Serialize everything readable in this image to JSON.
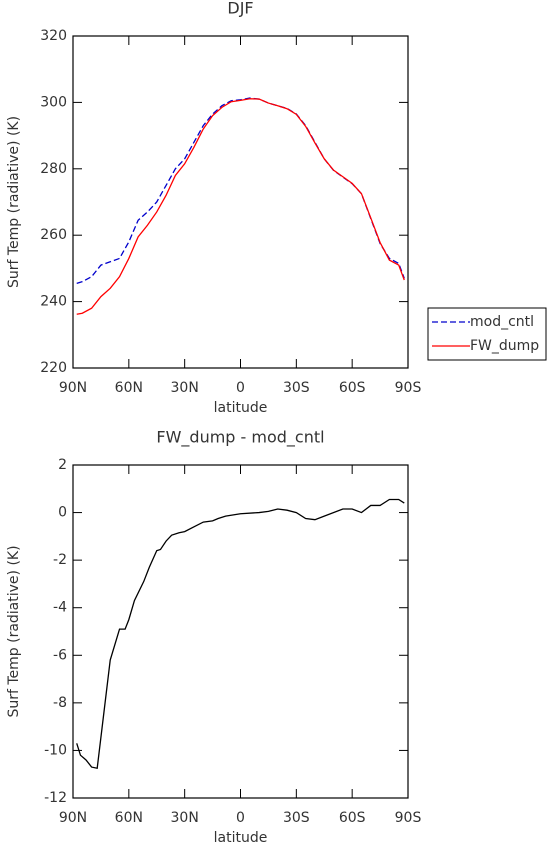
{
  "chart_data": [
    {
      "type": "line",
      "title": "DJF",
      "xlabel": "latitude",
      "ylabel": "Surf Temp (radiative) (K)",
      "x": [
        88,
        85,
        80,
        75,
        70,
        65,
        60,
        55,
        50,
        45,
        40,
        35,
        30,
        25,
        20,
        15,
        10,
        5,
        0,
        -5,
        -10,
        -15,
        -20,
        -25,
        -30,
        -35,
        -40,
        -45,
        -50,
        -55,
        -60,
        -65,
        -70,
        -75,
        -80,
        -85,
        -88
      ],
      "series": [
        {
          "name": "mod_cntl",
          "color": "#0000cc",
          "linestyle": "dashed",
          "values": [
            245.5,
            246,
            247.5,
            251,
            252,
            253,
            258,
            264.5,
            267,
            270,
            275,
            280,
            283,
            288,
            293,
            296.5,
            299,
            300.5,
            300.8,
            301.3,
            301,
            299.8,
            299,
            298.2,
            296.5,
            293,
            288,
            283,
            279.5,
            277.5,
            275.5,
            272.5,
            265,
            257.5,
            253,
            251.5,
            247
          ]
        },
        {
          "name": "FW_dump",
          "color": "#ff0000",
          "linestyle": "solid",
          "values": [
            236.2,
            236.5,
            238,
            241.5,
            244,
            247.5,
            253,
            259.5,
            263,
            267,
            272,
            278,
            281.5,
            286.5,
            292,
            296,
            298.5,
            300.2,
            300.6,
            301.1,
            301,
            299.8,
            299,
            298.1,
            296.4,
            292.8,
            287.8,
            283,
            279.6,
            277.6,
            275.6,
            272.5,
            265.2,
            257.8,
            252.5,
            251,
            246.5
          ]
        }
      ],
      "xlim": [
        90,
        -90
      ],
      "xticks": [
        {
          "value": 90,
          "label": "90N"
        },
        {
          "value": 60,
          "label": "60N"
        },
        {
          "value": 30,
          "label": "30N"
        },
        0,
        {
          "value": -30,
          "label": "30S"
        },
        {
          "value": -60,
          "label": "60S"
        },
        {
          "value": -90,
          "label": "90S"
        }
      ],
      "ylim": [
        220,
        320
      ],
      "yticks": [
        220,
        240,
        260,
        280,
        300,
        320
      ],
      "legend": "right"
    },
    {
      "type": "line",
      "title": "FW_dump - mod_cntl",
      "xlabel": "latitude",
      "ylabel": "Surf Temp (radiative) (K)",
      "x": [
        88,
        86,
        83,
        80,
        77,
        74,
        70,
        65,
        62,
        60,
        57,
        52,
        49,
        45,
        43,
        40,
        37,
        33,
        30,
        25,
        20,
        15,
        12,
        8,
        0,
        -10,
        -15,
        -20,
        -25,
        -30,
        -35,
        -40,
        -45,
        -55,
        -60,
        -65,
        -70,
        -75,
        -80,
        -85,
        -88
      ],
      "color": "#000000",
      "values": [
        -9.7,
        -10.2,
        -10.4,
        -10.7,
        -10.75,
        -8.8,
        -6.2,
        -4.9,
        -4.9,
        -4.5,
        -3.7,
        -2.9,
        -2.3,
        -1.6,
        -1.55,
        -1.2,
        -0.95,
        -0.85,
        -0.8,
        -0.6,
        -0.4,
        -0.35,
        -0.25,
        -0.15,
        -0.05,
        0,
        0.05,
        0.15,
        0.1,
        0,
        -0.25,
        -0.3,
        -0.15,
        0.15,
        0.15,
        0,
        0.3,
        0.3,
        0.55,
        0.55,
        0.4
      ],
      "xlim": [
        90,
        -90
      ],
      "xticks": [
        {
          "value": 90,
          "label": "90N"
        },
        {
          "value": 60,
          "label": "60N"
        },
        {
          "value": 30,
          "label": "30N"
        },
        0,
        {
          "value": -30,
          "label": "30S"
        },
        {
          "value": -60,
          "label": "60S"
        },
        {
          "value": -90,
          "label": "90S"
        }
      ],
      "ylim": [
        -12,
        2
      ],
      "yticks": [
        -12,
        -10,
        -8,
        -6,
        -4,
        -2,
        0,
        2
      ]
    }
  ]
}
